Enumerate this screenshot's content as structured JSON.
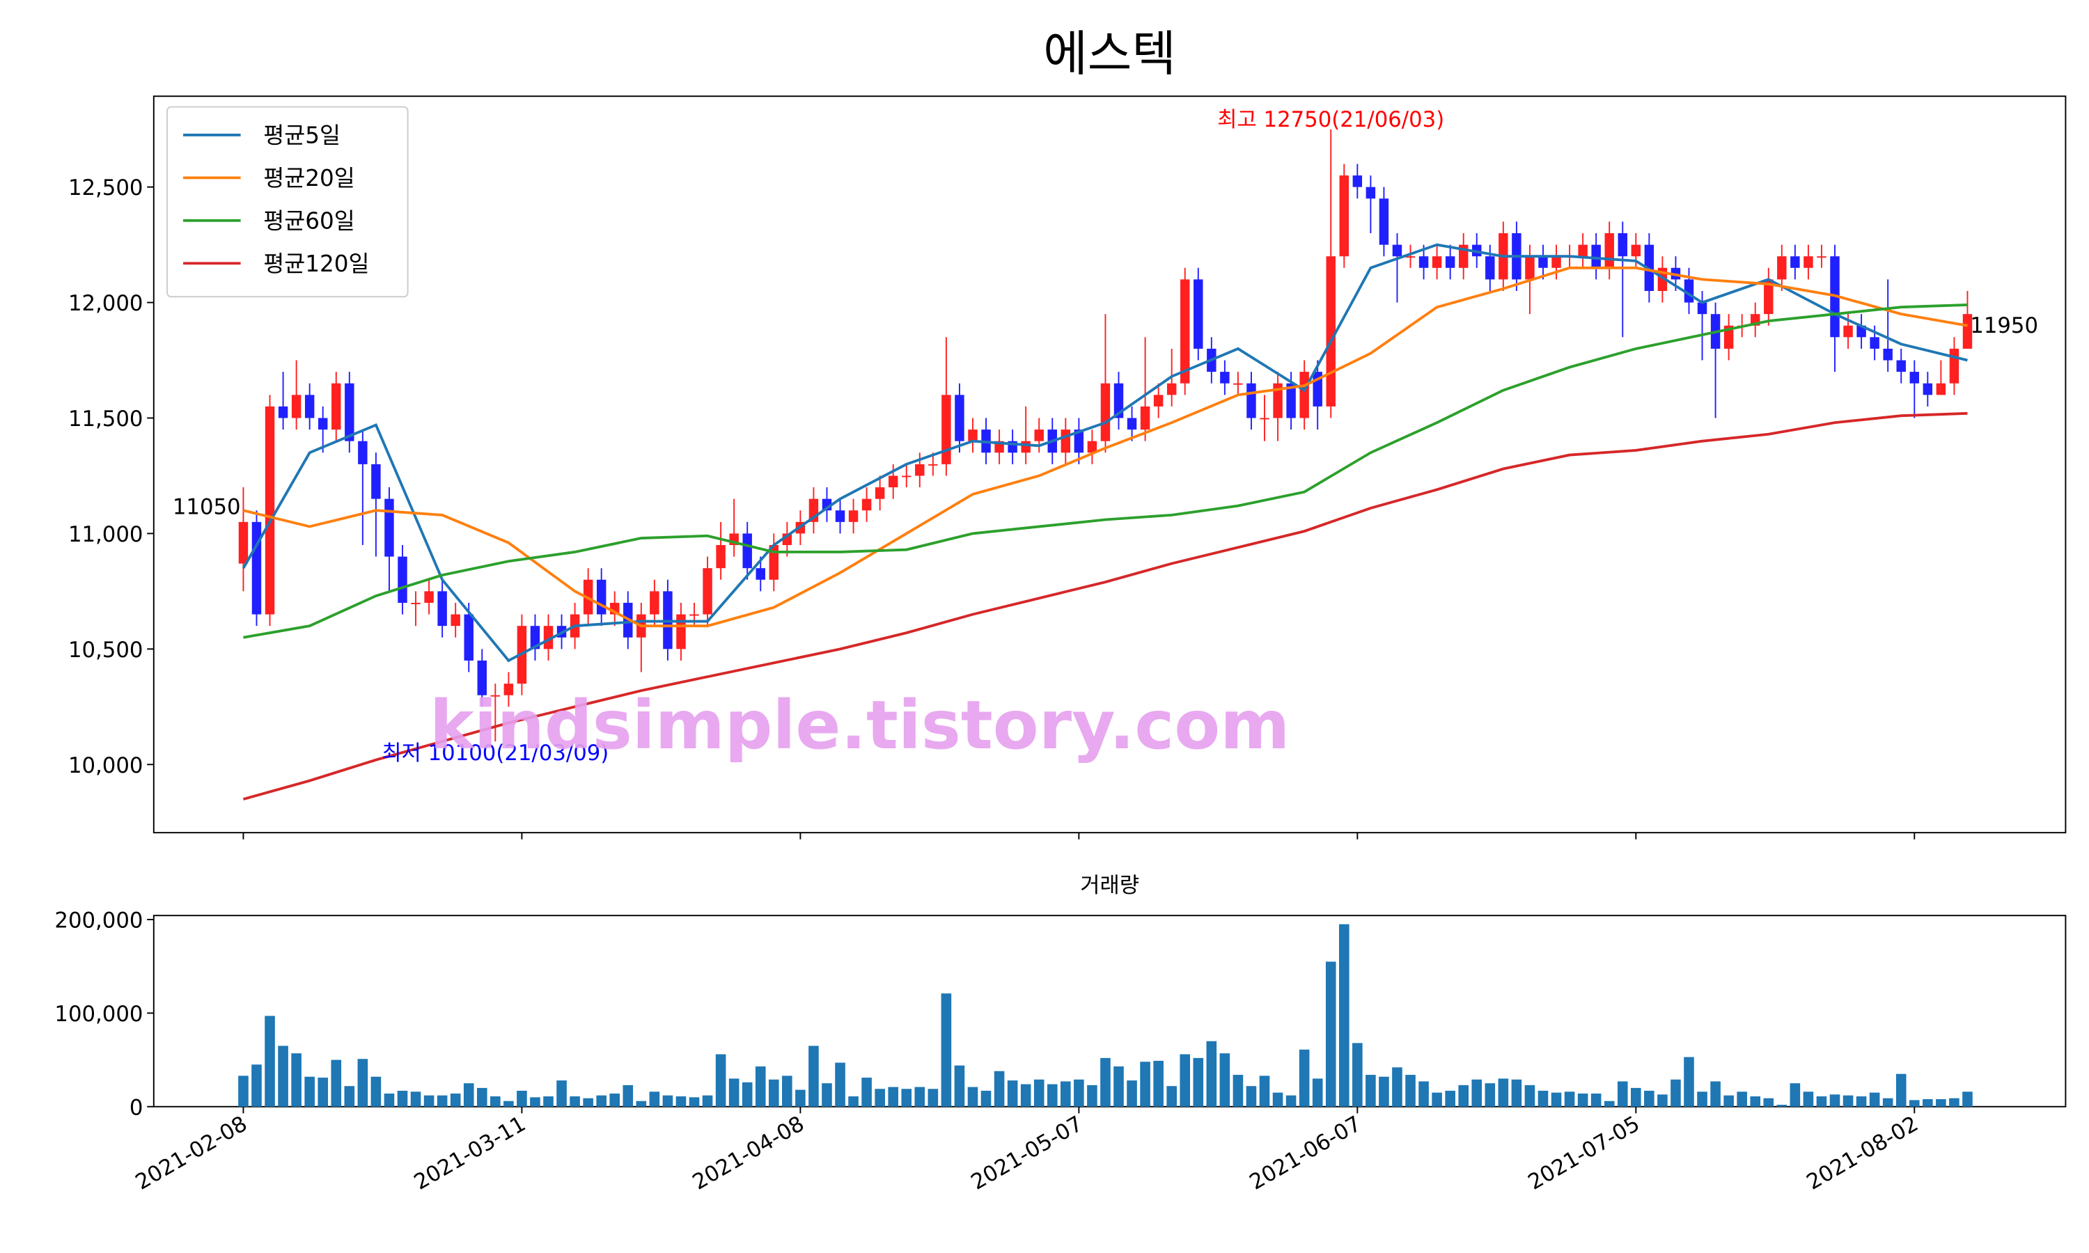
{
  "chart_data": [
    {
      "type": "candlestick",
      "title": "에스텍",
      "categories": [
        "2021-02-08",
        null,
        null,
        null,
        null,
        null,
        null,
        null,
        null,
        null,
        null,
        null,
        null,
        null,
        null,
        null,
        null,
        null,
        null,
        null,
        null,
        "2021-03-11",
        null,
        null,
        null,
        null,
        null,
        null,
        null,
        null,
        null,
        null,
        null,
        null,
        null,
        null,
        null,
        null,
        null,
        null,
        null,
        null,
        "2021-04-08",
        null,
        null,
        null,
        null,
        null,
        null,
        null,
        null,
        null,
        null,
        null,
        null,
        null,
        null,
        null,
        null,
        null,
        null,
        null,
        null,
        "2021-05-07",
        null,
        null,
        null,
        null,
        null,
        null,
        null,
        null,
        null,
        null,
        null,
        null,
        null,
        null,
        null,
        null,
        null,
        null,
        null,
        null,
        "2021-06-07",
        null,
        null,
        null,
        null,
        null,
        null,
        null,
        null,
        null,
        null,
        null,
        null,
        null,
        null,
        null,
        null,
        null,
        null,
        null,
        null,
        "2021-07-05",
        null,
        null,
        null,
        null,
        null,
        null,
        null,
        null,
        null,
        null,
        null,
        null,
        null,
        null,
        null,
        null,
        null,
        null,
        null,
        null,
        "2021-08-02",
        null,
        null,
        null,
        null
      ],
      "open": [
        10870,
        11050,
        10650,
        11550,
        11500,
        11600,
        11500,
        11450,
        11650,
        11400,
        11300,
        11150,
        10900,
        10700,
        10700,
        10750,
        10600,
        10650,
        10450,
        10300,
        10300,
        10350,
        10600,
        10500,
        10600,
        10550,
        10650,
        10800,
        10650,
        10700,
        10550,
        10650,
        10750,
        10500,
        10650,
        10650,
        10850,
        10950,
        11000,
        10850,
        10800,
        10950,
        11000,
        11050,
        11150,
        11100,
        11050,
        11100,
        11150,
        11200,
        11250,
        11250,
        11300,
        11300,
        11600,
        11400,
        11450,
        11350,
        11400,
        11350,
        11400,
        11450,
        11350,
        11450,
        11350,
        11400,
        11650,
        11500,
        11450,
        11550,
        11600,
        11650,
        12100,
        11800,
        11700,
        11650,
        11650,
        11500,
        11500,
        11650,
        11500,
        11700,
        11550,
        12200,
        12550,
        12500,
        12450,
        12250,
        12200,
        12200,
        12150,
        12200,
        12150,
        12250,
        12200,
        12100,
        12300,
        12100,
        12200,
        12150,
        12200,
        12200,
        12250,
        12150,
        12300,
        12200,
        12250,
        12050,
        12150,
        12100,
        12000,
        11950,
        11800,
        11900,
        11900,
        11950,
        12100,
        12200,
        12150,
        12200,
        12200,
        11850,
        11900,
        11850,
        11800,
        11750,
        11700,
        11650,
        11600,
        11650,
        11800
      ],
      "high": [
        11200,
        11100,
        11600,
        11700,
        11750,
        11650,
        11550,
        11700,
        11700,
        11450,
        11350,
        11200,
        10950,
        10750,
        10800,
        10800,
        10700,
        10700,
        10500,
        10350,
        10400,
        10650,
        10650,
        10650,
        10650,
        10700,
        10850,
        10850,
        10750,
        10750,
        10700,
        10800,
        10800,
        10700,
        10700,
        10900,
        11050,
        11150,
        11050,
        10900,
        11000,
        11050,
        11100,
        11200,
        11200,
        11150,
        11150,
        11200,
        11250,
        11300,
        11300,
        11350,
        11350,
        11850,
        11650,
        11500,
        11500,
        11450,
        11450,
        11550,
        11500,
        11500,
        11500,
        11500,
        11450,
        11950,
        11700,
        11550,
        11850,
        11650,
        11800,
        12150,
        12150,
        11850,
        11750,
        11700,
        11700,
        11600,
        11700,
        11700,
        11750,
        11750,
        12750,
        12600,
        12600,
        12550,
        12500,
        12300,
        12250,
        12250,
        12250,
        12250,
        12300,
        12300,
        12250,
        12350,
        12350,
        12250,
        12250,
        12250,
        12250,
        12300,
        12300,
        12350,
        12350,
        12300,
        12300,
        12200,
        12200,
        12150,
        12050,
        12000,
        11950,
        11950,
        12000,
        12150,
        12250,
        12250,
        12250,
        12250,
        12250,
        11950,
        11950,
        11900,
        12100,
        11800,
        11750,
        11700,
        11750,
        11850,
        12050
      ],
      "low": [
        10750,
        10600,
        10600,
        11450,
        11450,
        11450,
        11350,
        11400,
        11350,
        10950,
        10900,
        10750,
        10650,
        10600,
        10650,
        10550,
        10550,
        10400,
        10250,
        10100,
        10250,
        10300,
        10450,
        10450,
        10500,
        10500,
        10600,
        10600,
        10600,
        10500,
        10400,
        10600,
        10450,
        10450,
        10600,
        10600,
        10800,
        10900,
        10800,
        10750,
        10750,
        10900,
        10950,
        11000,
        11050,
        11000,
        11000,
        11050,
        11100,
        11150,
        11200,
        11200,
        11250,
        11250,
        11350,
        11350,
        11300,
        11300,
        11300,
        11300,
        11350,
        11300,
        11300,
        11300,
        11300,
        11350,
        11450,
        11400,
        11400,
        11500,
        11550,
        11600,
        11750,
        11650,
        11600,
        11600,
        11450,
        11400,
        11400,
        11450,
        11450,
        11450,
        11500,
        12150,
        12450,
        12300,
        12200,
        12000,
        12150,
        12100,
        12100,
        12100,
        12100,
        12150,
        12050,
        12050,
        12050,
        11950,
        12100,
        12100,
        12150,
        12150,
        12100,
        12100,
        11850,
        12150,
        12000,
        12000,
        12050,
        11950,
        11750,
        11500,
        11750,
        11850,
        11850,
        11900,
        12050,
        12100,
        12100,
        12150,
        11700,
        11800,
        11800,
        11750,
        11700,
        11650,
        11500,
        11550,
        11600,
        11600,
        11800
      ],
      "close": [
        11050,
        10650,
        11550,
        11500,
        11600,
        11500,
        11450,
        11650,
        11400,
        11300,
        11150,
        10900,
        10700,
        10700,
        10750,
        10600,
        10650,
        10450,
        10300,
        10300,
        10350,
        10600,
        10500,
        10600,
        10550,
        10650,
        10800,
        10650,
        10700,
        10550,
        10650,
        10750,
        10500,
        10650,
        10650,
        10850,
        10950,
        11000,
        10850,
        10800,
        10950,
        11000,
        11050,
        11150,
        11100,
        11050,
        11100,
        11150,
        11200,
        11250,
        11250,
        11300,
        11300,
        11600,
        11400,
        11450,
        11350,
        11400,
        11350,
        11400,
        11450,
        11350,
        11450,
        11350,
        11400,
        11650,
        11500,
        11450,
        11550,
        11600,
        11650,
        12100,
        11800,
        11700,
        11650,
        11650,
        11500,
        11500,
        11650,
        11500,
        11700,
        11550,
        12200,
        12550,
        12500,
        12450,
        12250,
        12200,
        12200,
        12150,
        12200,
        12150,
        12250,
        12200,
        12100,
        12300,
        12100,
        12200,
        12150,
        12200,
        12200,
        12250,
        12150,
        12300,
        12200,
        12250,
        12050,
        12150,
        12100,
        12000,
        11950,
        11800,
        11900,
        11900,
        11950,
        12100,
        12200,
        12150,
        12200,
        12200,
        11850,
        11900,
        11850,
        11800,
        11750,
        11700,
        11650,
        11600,
        11650,
        11800,
        11950
      ],
      "up_color": "#ff2020",
      "down_color": "#2020ff",
      "series": [
        {
          "name": "평균5일",
          "color": "#1f77b4",
          "x": [
            0,
            5,
            10,
            15,
            20,
            25,
            30,
            35,
            40,
            45,
            50,
            55,
            60,
            65,
            70,
            75,
            80,
            85,
            90,
            95,
            100,
            105,
            110,
            115,
            120,
            125,
            130
          ],
          "values": [
            10850,
            11350,
            11470,
            10800,
            10450,
            10600,
            10620,
            10620,
            10950,
            11150,
            11300,
            11400,
            11380,
            11480,
            11680,
            11800,
            11620,
            12150,
            12250,
            12200,
            12200,
            12180,
            12000,
            12100,
            11950,
            11820,
            11750
          ]
        },
        {
          "name": "평균20일",
          "color": "#ff7f0e",
          "x": [
            0,
            5,
            10,
            15,
            20,
            25,
            30,
            35,
            40,
            45,
            50,
            55,
            60,
            65,
            70,
            75,
            80,
            85,
            90,
            95,
            100,
            105,
            110,
            115,
            120,
            125,
            130
          ],
          "values": [
            11100,
            11030,
            11100,
            11080,
            10960,
            10750,
            10600,
            10600,
            10680,
            10830,
            11000,
            11170,
            11250,
            11370,
            11480,
            11600,
            11640,
            11780,
            11980,
            12060,
            12150,
            12150,
            12100,
            12080,
            12030,
            11950,
            11900
          ]
        },
        {
          "name": "평균60일",
          "color": "#2ca02c",
          "x": [
            0,
            5,
            10,
            15,
            20,
            25,
            30,
            35,
            40,
            45,
            50,
            55,
            60,
            65,
            70,
            75,
            80,
            85,
            90,
            95,
            100,
            105,
            110,
            115,
            120,
            125,
            130
          ],
          "values": [
            10550,
            10600,
            10730,
            10820,
            10880,
            10920,
            10980,
            10990,
            10920,
            10920,
            10930,
            11000,
            11030,
            11060,
            11080,
            11120,
            11180,
            11350,
            11480,
            11620,
            11720,
            11800,
            11860,
            11920,
            11950,
            11980,
            11990
          ]
        },
        {
          "name": "평균120일",
          "color": "#d62728",
          "x": [
            0,
            5,
            10,
            15,
            20,
            25,
            30,
            35,
            40,
            45,
            50,
            55,
            60,
            65,
            70,
            75,
            80,
            85,
            90,
            95,
            100,
            105,
            110,
            115,
            120,
            125,
            130
          ],
          "values": [
            9850,
            9930,
            10020,
            10100,
            10180,
            10250,
            10320,
            10380,
            10440,
            10500,
            10570,
            10650,
            10720,
            10790,
            10870,
            10940,
            11010,
            11110,
            11190,
            11280,
            11340,
            11360,
            11400,
            11430,
            11480,
            11510,
            11520
          ]
        }
      ],
      "ylim": [
        9705,
        12893
      ],
      "yticks": [
        {
          "value": 10000,
          "label": "10,000"
        },
        {
          "value": 10500,
          "label": "10,500"
        },
        {
          "value": 11000,
          "label": "11,000"
        },
        {
          "value": 11500,
          "label": "11,500"
        },
        {
          "value": 12000,
          "label": "12,000"
        },
        {
          "value": 12500,
          "label": "12,500"
        }
      ],
      "legend": "upper left",
      "annotations": [
        {
          "text": "최고 12750(21/06/03)",
          "color": "#ff0000"
        },
        {
          "text": "최저 10100(21/03/09)",
          "color": "#0000ff"
        }
      ],
      "watermark": "kindsimple.tistory.com"
    },
    {
      "type": "bar",
      "title": "거래량",
      "color": "#1f77b4",
      "values": [
        33000,
        45000,
        97000,
        65000,
        57000,
        32000,
        31000,
        50000,
        22000,
        51000,
        32000,
        14000,
        17000,
        16000,
        12000,
        12000,
        14000,
        25000,
        20000,
        11000,
        6000,
        17000,
        10000,
        11000,
        28000,
        11000,
        9000,
        12000,
        14000,
        23000,
        6000,
        16000,
        12000,
        11000,
        10000,
        12000,
        56000,
        30000,
        26000,
        43000,
        29000,
        33000,
        18000,
        65000,
        25000,
        47000,
        11000,
        31000,
        19000,
        21000,
        19000,
        21000,
        19000,
        121000,
        44000,
        21000,
        17000,
        38000,
        28000,
        24000,
        29000,
        24000,
        27000,
        29000,
        23000,
        52000,
        43000,
        28000,
        48000,
        49000,
        22000,
        56000,
        52000,
        70000,
        57000,
        34000,
        22000,
        33000,
        15000,
        12000,
        61000,
        30000,
        155000,
        195000,
        68000,
        34000,
        32000,
        42000,
        34000,
        27000,
        15000,
        17000,
        23000,
        29000,
        25000,
        30000,
        29000,
        23000,
        17000,
        15000,
        16000,
        14000,
        14000,
        6000,
        27000,
        20000,
        17000,
        13000,
        29000,
        53000,
        16000,
        27000,
        12000,
        16000,
        11000,
        9000,
        2000,
        25000,
        16000,
        11000,
        13000,
        12000,
        11000,
        15000,
        9000,
        35000,
        7000,
        8000,
        8000,
        9000,
        16000
      ],
      "ylim": [
        0,
        204300
      ],
      "yticks": [
        0,
        {
          "value": 100000,
          "label": "100,000"
        },
        {
          "value": 200000,
          "label": "200,000"
        }
      ]
    }
  ]
}
